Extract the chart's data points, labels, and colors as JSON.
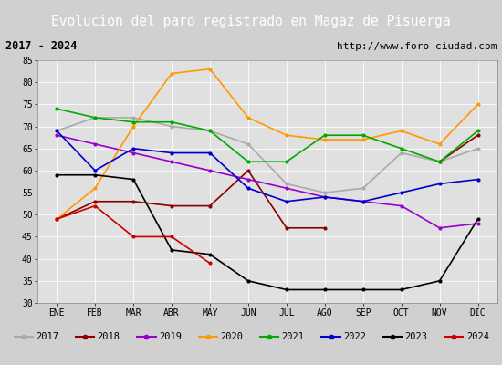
{
  "title": "Evolucion del paro registrado en Magaz de Pisuerga",
  "subtitle_left": "2017 - 2024",
  "subtitle_right": "http://www.foro-ciudad.com",
  "months": [
    "ENE",
    "FEB",
    "MAR",
    "ABR",
    "MAY",
    "JUN",
    "JUL",
    "AGO",
    "SEP",
    "OCT",
    "NOV",
    "DIC"
  ],
  "ylim": [
    30,
    85
  ],
  "yticks": [
    30,
    35,
    40,
    45,
    50,
    55,
    60,
    65,
    70,
    75,
    80,
    85
  ],
  "series": {
    "2017": {
      "color": "#aaaaaa",
      "values": [
        69,
        72,
        72,
        70,
        69,
        66,
        57,
        55,
        56,
        64,
        62,
        65
      ]
    },
    "2018": {
      "color": "#8b0000",
      "values": [
        49,
        53,
        53,
        52,
        52,
        60,
        47,
        47,
        null,
        null,
        62,
        68
      ]
    },
    "2019": {
      "color": "#9900cc",
      "values": [
        68,
        66,
        64,
        62,
        60,
        58,
        56,
        54,
        53,
        52,
        47,
        48
      ]
    },
    "2020": {
      "color": "#ff9900",
      "values": [
        49,
        56,
        70,
        82,
        83,
        72,
        68,
        67,
        67,
        69,
        66,
        75
      ]
    },
    "2021": {
      "color": "#00aa00",
      "values": [
        74,
        72,
        71,
        71,
        69,
        62,
        62,
        68,
        68,
        65,
        62,
        69
      ]
    },
    "2022": {
      "color": "#0000cc",
      "values": [
        69,
        60,
        65,
        64,
        64,
        56,
        53,
        54,
        53,
        55,
        57,
        58
      ]
    },
    "2023": {
      "color": "#000000",
      "values": [
        59,
        59,
        58,
        42,
        41,
        35,
        33,
        33,
        33,
        33,
        35,
        49
      ]
    },
    "2024": {
      "color": "#cc0000",
      "values": [
        49,
        52,
        45,
        45,
        39,
        null,
        null,
        null,
        null,
        null,
        null,
        null
      ]
    }
  },
  "background_color": "#d0d0d0",
  "plot_bg_color": "#e0e0e0",
  "title_bg_color": "#4f6fbe",
  "title_text_color": "#ffffff",
  "subtitle_bg_color": "#e8e8e8"
}
